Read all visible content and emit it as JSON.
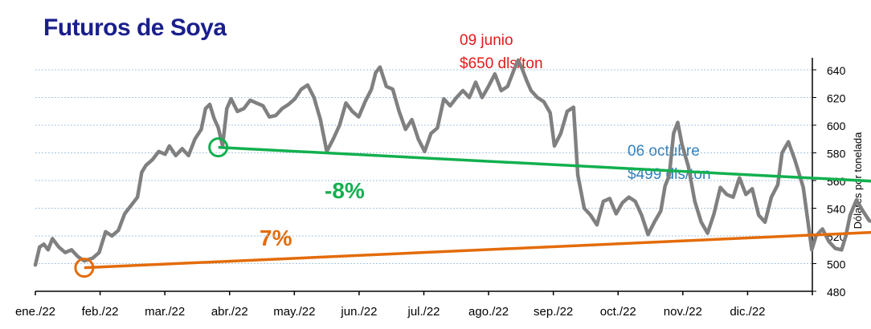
{
  "chart_data": {
    "type": "line",
    "title": "Futuros de Soya",
    "ylabel": "Dólares por tonelada",
    "ylim": [
      480,
      640
    ],
    "yticks": [
      480,
      500,
      520,
      540,
      560,
      580,
      600,
      620,
      640
    ],
    "x_months": [
      "ene./22",
      "feb./22",
      "mar./22",
      "abr./22",
      "may./22",
      "jun./22",
      "jul./22",
      "ago./22",
      "sep./22",
      "oct./22",
      "nov./22",
      "dic./22"
    ],
    "grid": "horizontal dashed",
    "series": [
      {
        "color": "#808080",
        "points": [
          [
            "2022-01-01",
            499
          ],
          [
            "2022-01-03",
            512
          ],
          [
            "2022-01-05",
            514
          ],
          [
            "2022-01-07",
            510
          ],
          [
            "2022-01-09",
            518
          ],
          [
            "2022-01-12",
            512
          ],
          [
            "2022-01-15",
            508
          ],
          [
            "2022-01-18",
            510
          ],
          [
            "2022-01-21",
            505
          ],
          [
            "2022-01-24",
            502
          ],
          [
            "2022-01-28",
            504
          ],
          [
            "2022-01-31",
            508
          ],
          [
            "2022-02-03",
            523
          ],
          [
            "2022-02-06",
            520
          ],
          [
            "2022-02-09",
            524
          ],
          [
            "2022-02-12",
            536
          ],
          [
            "2022-02-15",
            542
          ],
          [
            "2022-02-18",
            548
          ],
          [
            "2022-02-20",
            566
          ],
          [
            "2022-02-22",
            571
          ],
          [
            "2022-02-25",
            575
          ],
          [
            "2022-02-28",
            581
          ],
          [
            "2022-03-03",
            579
          ],
          [
            "2022-03-05",
            585
          ],
          [
            "2022-03-08",
            578
          ],
          [
            "2022-03-11",
            583
          ],
          [
            "2022-03-14",
            578
          ],
          [
            "2022-03-17",
            590
          ],
          [
            "2022-03-20",
            597
          ],
          [
            "2022-03-22",
            612
          ],
          [
            "2022-03-24",
            615
          ],
          [
            "2022-03-26",
            605
          ],
          [
            "2022-03-28",
            598
          ],
          [
            "2022-03-30",
            585
          ],
          [
            "2022-04-01",
            612
          ],
          [
            "2022-04-03",
            619
          ],
          [
            "2022-04-06",
            610
          ],
          [
            "2022-04-09",
            612
          ],
          [
            "2022-04-12",
            618
          ],
          [
            "2022-04-15",
            616
          ],
          [
            "2022-04-18",
            614
          ],
          [
            "2022-04-21",
            606
          ],
          [
            "2022-04-24",
            607
          ],
          [
            "2022-04-27",
            612
          ],
          [
            "2022-04-30",
            615
          ],
          [
            "2022-05-03",
            619
          ],
          [
            "2022-05-06",
            626
          ],
          [
            "2022-05-09",
            629
          ],
          [
            "2022-05-12",
            620
          ],
          [
            "2022-05-15",
            604
          ],
          [
            "2022-05-18",
            581
          ],
          [
            "2022-05-21",
            590
          ],
          [
            "2022-05-24",
            600
          ],
          [
            "2022-05-27",
            616
          ],
          [
            "2022-05-30",
            610
          ],
          [
            "2022-06-02",
            606
          ],
          [
            "2022-06-05",
            617
          ],
          [
            "2022-06-08",
            626
          ],
          [
            "2022-06-10",
            638
          ],
          [
            "2022-06-12",
            642
          ],
          [
            "2022-06-15",
            628
          ],
          [
            "2022-06-18",
            626
          ],
          [
            "2022-06-21",
            610
          ],
          [
            "2022-06-24",
            597
          ],
          [
            "2022-06-27",
            604
          ],
          [
            "2022-06-30",
            590
          ],
          [
            "2022-07-03",
            581
          ],
          [
            "2022-07-06",
            594
          ],
          [
            "2022-07-09",
            598
          ],
          [
            "2022-07-12",
            619
          ],
          [
            "2022-07-15",
            614
          ],
          [
            "2022-07-18",
            620
          ],
          [
            "2022-07-21",
            625
          ],
          [
            "2022-07-24",
            620
          ],
          [
            "2022-07-27",
            631
          ],
          [
            "2022-07-30",
            620
          ],
          [
            "2022-08-02",
            628
          ],
          [
            "2022-08-05",
            637
          ],
          [
            "2022-08-08",
            625
          ],
          [
            "2022-08-11",
            628
          ],
          [
            "2022-08-14",
            640
          ],
          [
            "2022-08-16",
            647
          ],
          [
            "2022-08-18",
            640
          ],
          [
            "2022-08-20",
            632
          ],
          [
            "2022-08-22",
            625
          ],
          [
            "2022-08-25",
            620
          ],
          [
            "2022-08-28",
            617
          ],
          [
            "2022-08-31",
            609
          ],
          [
            "2022-09-02",
            585
          ],
          [
            "2022-09-05",
            594
          ],
          [
            "2022-09-08",
            610
          ],
          [
            "2022-09-11",
            613
          ],
          [
            "2022-09-13",
            564
          ],
          [
            "2022-09-16",
            540
          ],
          [
            "2022-09-19",
            535
          ],
          [
            "2022-09-22",
            528
          ],
          [
            "2022-09-25",
            545
          ],
          [
            "2022-09-28",
            547
          ],
          [
            "2022-10-01",
            536
          ],
          [
            "2022-10-04",
            544
          ],
          [
            "2022-10-07",
            548
          ],
          [
            "2022-10-10",
            545
          ],
          [
            "2022-10-13",
            535
          ],
          [
            "2022-10-16",
            521
          ],
          [
            "2022-10-19",
            530
          ],
          [
            "2022-10-22",
            538
          ],
          [
            "2022-10-24",
            556
          ],
          [
            "2022-10-26",
            564
          ],
          [
            "2022-10-28",
            594
          ],
          [
            "2022-10-30",
            602
          ],
          [
            "2022-11-01",
            586
          ],
          [
            "2022-11-04",
            570
          ],
          [
            "2022-11-07",
            545
          ],
          [
            "2022-11-10",
            530
          ],
          [
            "2022-11-13",
            522
          ],
          [
            "2022-11-16",
            536
          ],
          [
            "2022-11-19",
            555
          ],
          [
            "2022-11-22",
            550
          ],
          [
            "2022-11-25",
            548
          ],
          [
            "2022-11-28",
            562
          ],
          [
            "2022-12-01",
            550
          ],
          [
            "2022-12-04",
            554
          ],
          [
            "2022-12-07",
            535
          ],
          [
            "2022-12-10",
            530
          ],
          [
            "2022-12-13",
            548
          ],
          [
            "2022-12-16",
            557
          ],
          [
            "2022-12-18",
            580
          ],
          [
            "2022-12-21",
            588
          ],
          [
            "2022-12-24",
            575
          ],
          [
            "2022-12-26",
            565
          ],
          [
            "2022-12-28",
            555
          ],
          [
            "2023-01-01",
            510
          ],
          [
            "2023-01-03",
            520
          ],
          [
            "2023-01-06",
            525
          ],
          [
            "2023-01-09",
            516
          ],
          [
            "2023-01-12",
            511
          ],
          [
            "2023-01-15",
            510
          ],
          [
            "2023-01-17",
            520
          ],
          [
            "2023-01-19",
            535
          ],
          [
            "2023-01-22",
            546
          ],
          [
            "2023-01-25",
            538
          ],
          [
            "2023-01-28",
            531
          ],
          [
            "2023-01-31",
            530
          ],
          [
            "2023-02-03",
            542
          ],
          [
            "2023-02-06",
            536
          ],
          [
            "2023-02-09",
            520
          ],
          [
            "2023-02-12",
            508
          ],
          [
            "2023-02-15",
            502
          ],
          [
            "2023-02-18",
            510
          ],
          [
            "2023-02-21",
            500
          ],
          [
            "2023-02-24",
            505
          ],
          [
            "2023-02-27",
            506
          ],
          [
            "2023-03-02",
            515
          ],
          [
            "2023-03-05",
            512
          ],
          [
            "2023-03-08",
            506
          ],
          [
            "2023-03-11",
            510
          ],
          [
            "2023-03-14",
            515
          ],
          [
            "2023-03-17",
            505
          ],
          [
            "2023-03-20",
            504
          ],
          [
            "2023-03-23",
            510
          ],
          [
            "2023-03-26",
            512
          ],
          [
            "2023-03-29",
            516
          ],
          [
            "2023-04-01",
            532
          ],
          [
            "2023-04-04",
            537
          ],
          [
            "2023-04-07",
            532
          ],
          [
            "2023-04-10",
            531
          ],
          [
            "2023-04-13",
            526
          ],
          [
            "2023-04-16",
            535
          ],
          [
            "2023-04-19",
            524
          ],
          [
            "2023-04-22",
            527
          ],
          [
            "2023-04-25",
            532
          ],
          [
            "2023-04-28",
            531
          ],
          [
            "2023-05-01",
            533
          ],
          [
            "2023-05-04",
            538
          ],
          [
            "2023-05-07",
            532
          ],
          [
            "2023-05-10",
            546
          ],
          [
            "2023-05-12",
            547
          ],
          [
            "2023-05-15",
            540
          ],
          [
            "2023-05-17",
            536
          ]
        ]
      }
    ],
    "annotations": [
      {
        "text_lines": [
          "09 junio",
          "$650 dls/ton"
        ],
        "color": "#e31a1c"
      },
      {
        "text_lines": [
          "06 octubre",
          "$499 dls/ton"
        ],
        "color": "#2f7fbd"
      },
      {
        "text": "-8%",
        "color": "#12b04f",
        "arrow_from": [
          "2022-03-28",
          584
        ],
        "arrow_to": [
          "2023-05-17",
          551
        ]
      },
      {
        "text": "7%",
        "color": "#e36c0a",
        "arrow_from": [
          "2022-01-24",
          497
        ],
        "arrow_to": [
          "2023-05-17",
          530
        ]
      }
    ]
  }
}
